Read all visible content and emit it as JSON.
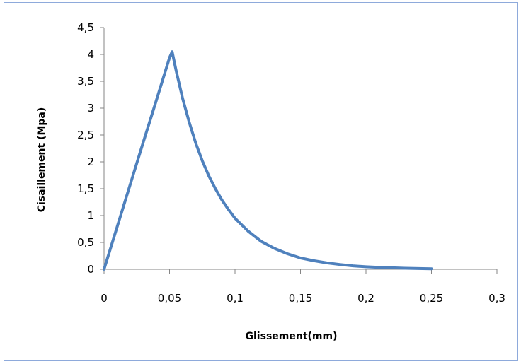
{
  "chart_data": {
    "type": "line",
    "title": "",
    "xlabel": "Glissement(mm)",
    "ylabel": "Cisaillement (Mpa)",
    "xlim": [
      0,
      0.3
    ],
    "ylim": [
      0,
      4.5
    ],
    "xticks": [
      0,
      0.05,
      0.1,
      0.15,
      0.2,
      0.25,
      0.3
    ],
    "xtick_labels": [
      "0",
      "0,05",
      "0,1",
      "0,15",
      "0,2",
      "0,25",
      "0,3"
    ],
    "yticks": [
      0,
      0.5,
      1,
      1.5,
      2,
      2.5,
      3,
      3.5,
      4,
      4.5
    ],
    "ytick_labels": [
      "0",
      "0,5",
      "1",
      "1,5",
      "2",
      "2,5",
      "3",
      "3,5",
      "4",
      "4,5"
    ],
    "grid": false,
    "legend": "none",
    "series_color": "#4f81bd",
    "series": [
      {
        "x": [
          0,
          0.01,
          0.02,
          0.03,
          0.04,
          0.05,
          0.052,
          0.055,
          0.06,
          0.065,
          0.07,
          0.075,
          0.08,
          0.085,
          0.09,
          0.095,
          0.1,
          0.11,
          0.12,
          0.13,
          0.14,
          0.15,
          0.16,
          0.17,
          0.18,
          0.19,
          0.2,
          0.21,
          0.22,
          0.23,
          0.24,
          0.25
        ],
        "y": [
          0,
          0.79,
          1.58,
          2.37,
          3.15,
          3.94,
          4.05,
          3.7,
          3.18,
          2.74,
          2.35,
          2.02,
          1.74,
          1.5,
          1.29,
          1.11,
          0.95,
          0.71,
          0.52,
          0.39,
          0.29,
          0.21,
          0.16,
          0.12,
          0.09,
          0.065,
          0.048,
          0.036,
          0.027,
          0.02,
          0.015,
          0.011
        ]
      }
    ]
  }
}
